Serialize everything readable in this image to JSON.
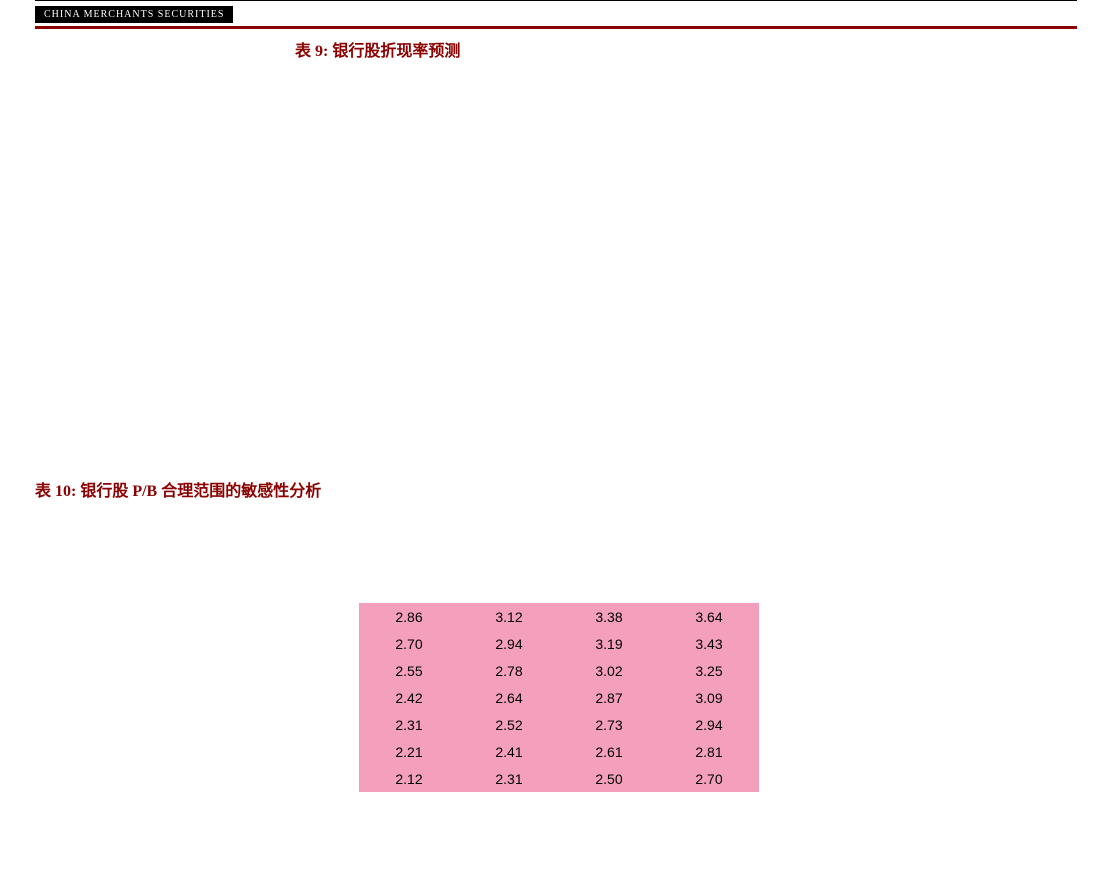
{
  "header": {
    "logo_text": "CHINA MERCHANTS SECURITIES"
  },
  "table9": {
    "title": "表 9: 银行股折现率预测"
  },
  "table10": {
    "title": "表 10:  银行股 P/B 合理范围的敏感性分析",
    "highlight_bg": "#f4a0bd",
    "rows": [
      [
        "2.86",
        "3.12",
        "3.38",
        "3.64"
      ],
      [
        "2.70",
        "2.94",
        "3.19",
        "3.43"
      ],
      [
        "2.55",
        "2.78",
        "3.02",
        "3.25"
      ],
      [
        "2.42",
        "2.64",
        "2.87",
        "3.09"
      ],
      [
        "2.31",
        "2.52",
        "2.73",
        "2.94"
      ],
      [
        "2.21",
        "2.41",
        "2.61",
        "2.81"
      ],
      [
        "2.12",
        "2.31",
        "2.50",
        "2.70"
      ]
    ]
  },
  "colors": {
    "title_red": "#8b0000",
    "highlight_pink": "#f4a0bd",
    "border_red": "#8b0000"
  }
}
